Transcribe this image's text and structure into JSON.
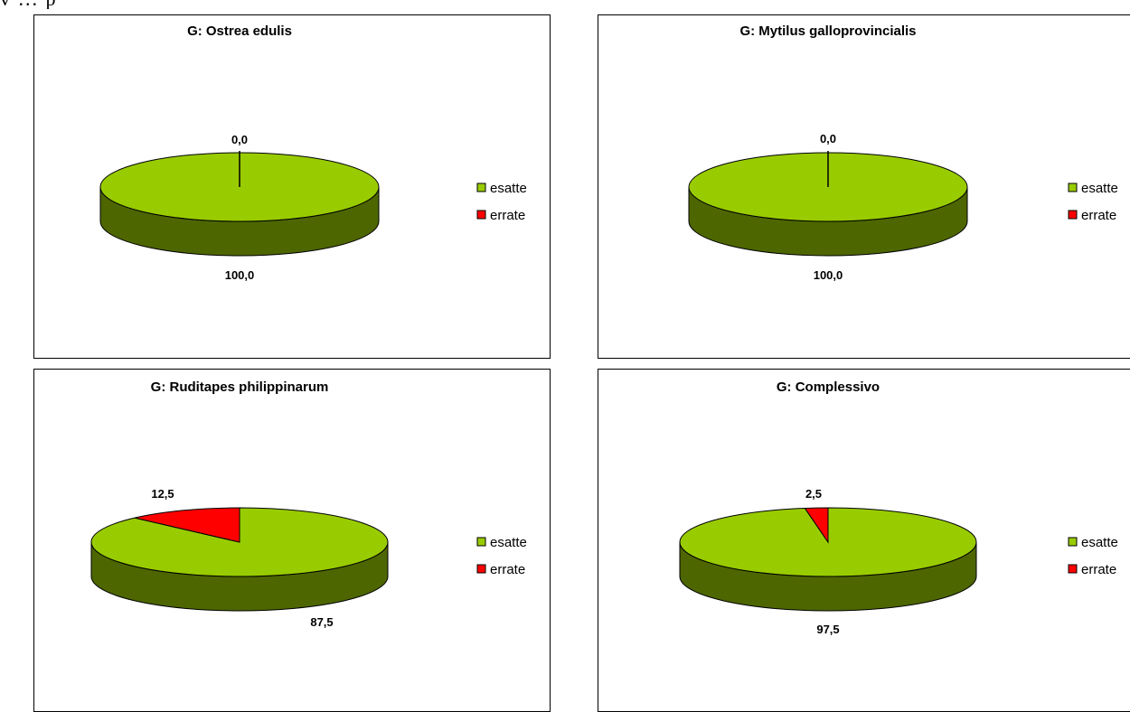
{
  "page_fragment": "v ... p",
  "colors": {
    "esatte_top": "#99cc00",
    "esatte_side": "#4d6600",
    "errate_top": "#ff0000",
    "errate_side": "#990000",
    "outline": "#000000"
  },
  "chart_data": [
    {
      "type": "pie",
      "title": "G: Ostrea edulis",
      "categories": [
        "esatte",
        "errate"
      ],
      "values": [
        100.0,
        0.0
      ],
      "value_labels": [
        "100,0",
        "0,0"
      ],
      "style": "3d",
      "legend": "right"
    },
    {
      "type": "pie",
      "title": "G: Mytilus galloprovincialis",
      "categories": [
        "esatte",
        "errate"
      ],
      "values": [
        100.0,
        0.0
      ],
      "value_labels": [
        "100,0",
        "0,0"
      ],
      "style": "3d",
      "legend": "right"
    },
    {
      "type": "pie",
      "title": "G: Ruditapes philippinarum",
      "categories": [
        "esatte",
        "errate"
      ],
      "values": [
        87.5,
        12.5
      ],
      "value_labels": [
        "87,5",
        "12,5"
      ],
      "style": "3d",
      "legend": "right"
    },
    {
      "type": "pie",
      "title": "G: Complessivo",
      "categories": [
        "esatte",
        "errate"
      ],
      "values": [
        97.5,
        2.5
      ],
      "value_labels": [
        "97,5",
        "2,5"
      ],
      "style": "3d",
      "legend": "right"
    }
  ]
}
